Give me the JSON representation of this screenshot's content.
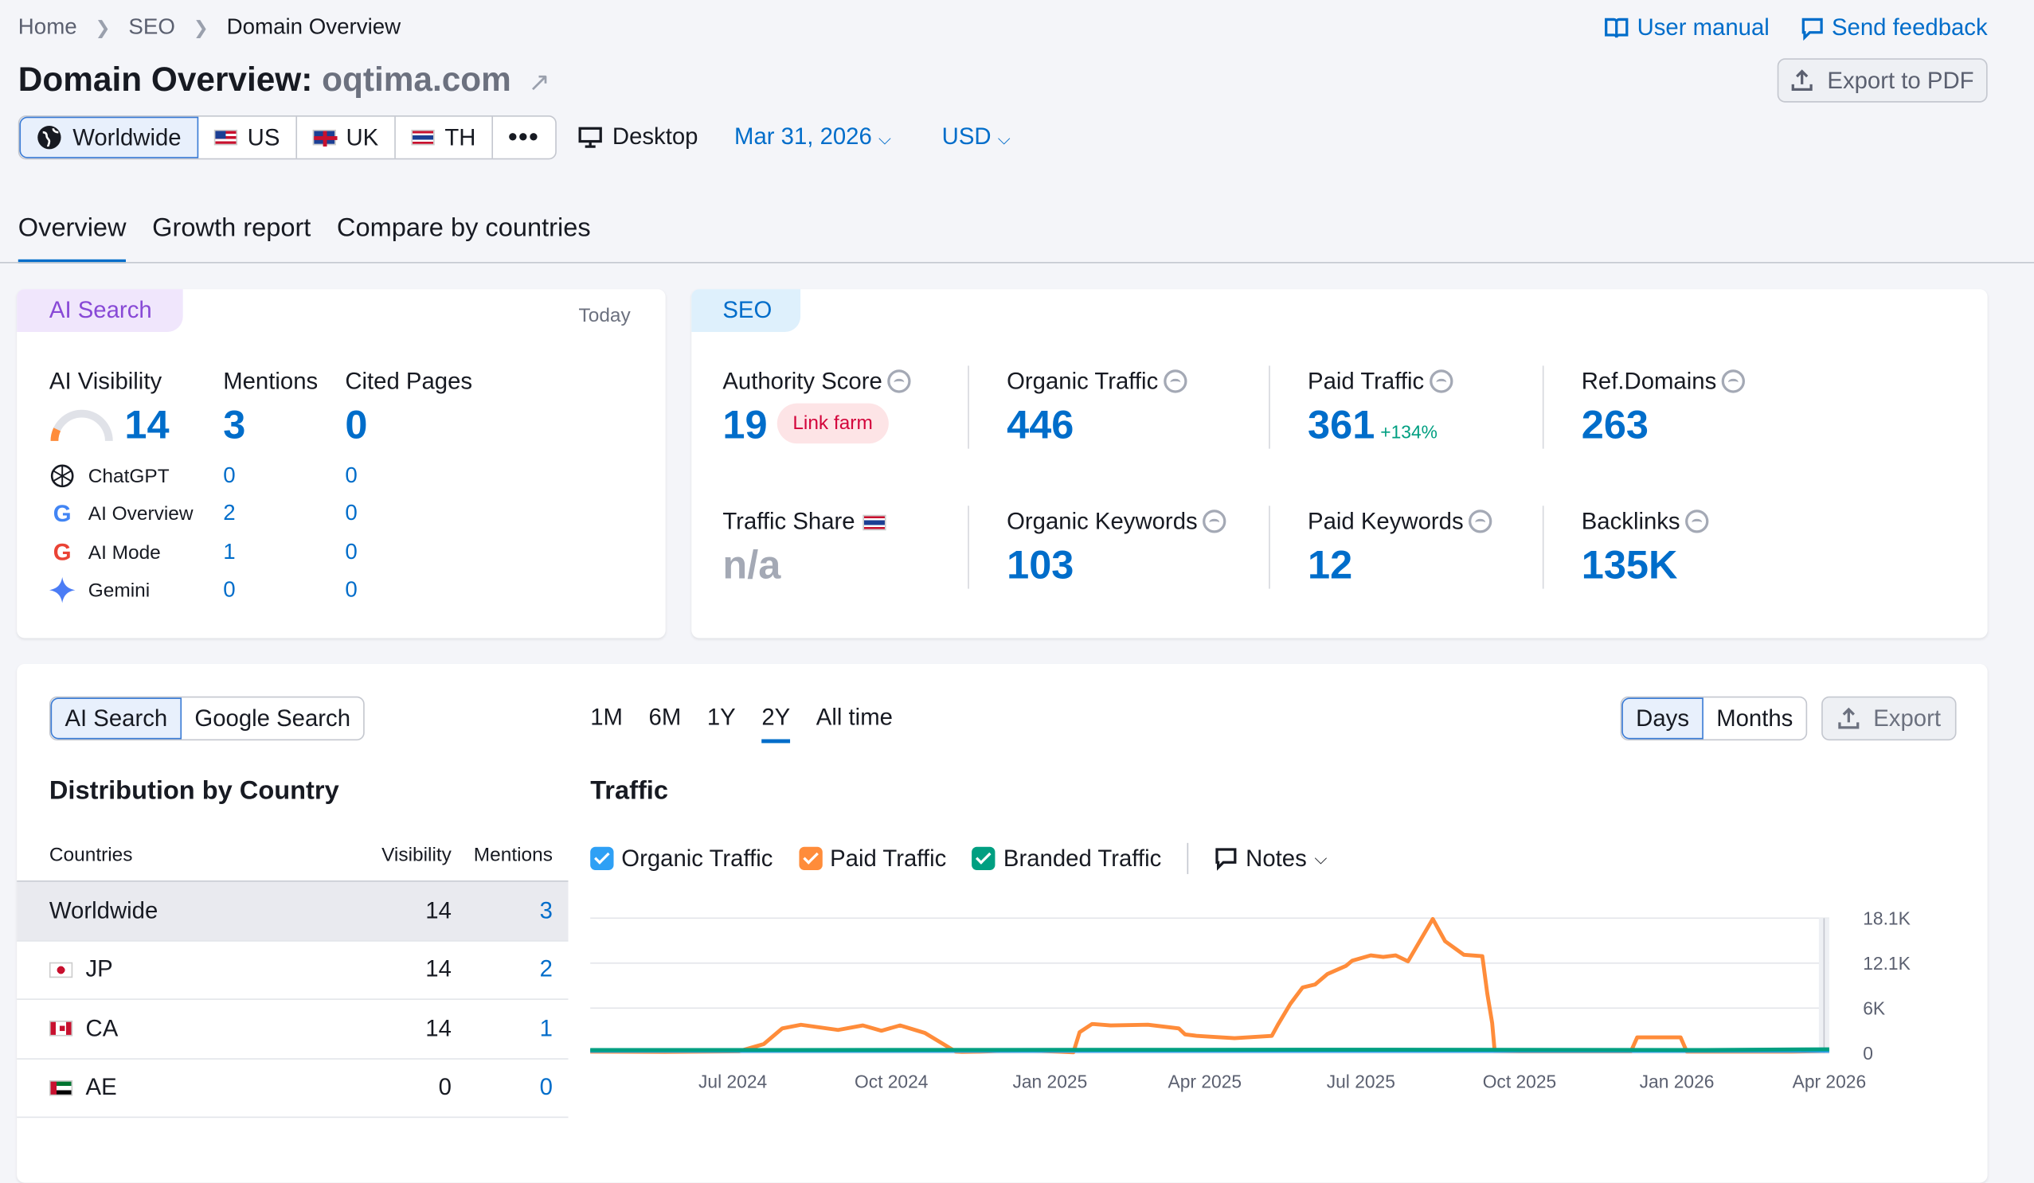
{
  "breadcrumb": [
    "Home",
    "SEO",
    "Domain Overview"
  ],
  "top_links": {
    "manual": "User manual",
    "feedback": "Send feedback"
  },
  "title": {
    "prefix": "Domain Overview:",
    "domain": "oqtima.com"
  },
  "export_pdf": "Export to PDF",
  "db_tabs": [
    {
      "label": "Worldwide",
      "icon": "globe-icon"
    },
    {
      "label": "US",
      "icon": "us-flag-icon"
    },
    {
      "label": "UK",
      "icon": "uk-flag-icon"
    },
    {
      "label": "TH",
      "icon": "th-flag-icon"
    }
  ],
  "device": "Desktop",
  "date": "Mar 31, 2026",
  "currency": "USD",
  "nav_tabs": [
    "Overview",
    "Growth report",
    "Compare by countries"
  ],
  "ai_card": {
    "pill": "AI Search",
    "today": "Today",
    "headers": {
      "visibility": "AI Visibility",
      "mentions": "Mentions",
      "cited": "Cited Pages"
    },
    "totals": {
      "visibility": "14",
      "mentions": "3",
      "cited": "0"
    },
    "visibility_gauge": 0.14,
    "rows": [
      {
        "name": "ChatGPT",
        "icon": "chatgpt-icon",
        "mentions": "0",
        "cited": "0"
      },
      {
        "name": "AI Overview",
        "icon": "google-icon",
        "mentions": "2",
        "cited": "0"
      },
      {
        "name": "AI Mode",
        "icon": "google-icon",
        "mentions": "1",
        "cited": "0"
      },
      {
        "name": "Gemini",
        "icon": "gemini-icon",
        "mentions": "0",
        "cited": "0"
      }
    ]
  },
  "seo_card": {
    "pill": "SEO",
    "authority": {
      "label": "Authority Score",
      "value": "19",
      "badge": "Link farm"
    },
    "organic_traffic": {
      "label": "Organic Traffic",
      "value": "446"
    },
    "paid_traffic": {
      "label": "Paid Traffic",
      "value": "361",
      "change": "+134%"
    },
    "ref_domains": {
      "label": "Ref.Domains",
      "value": "263"
    },
    "traffic_share": {
      "label": "Traffic Share",
      "value": "n/a"
    },
    "organic_keywords": {
      "label": "Organic Keywords",
      "value": "103"
    },
    "paid_keywords": {
      "label": "Paid Keywords",
      "value": "12"
    },
    "backlinks": {
      "label": "Backlinks",
      "value": "135K"
    }
  },
  "bottom": {
    "search_toggle": [
      "AI Search",
      "Google Search"
    ],
    "periods": [
      "1M",
      "6M",
      "1Y",
      "2Y",
      "All time"
    ],
    "granularity": [
      "Days",
      "Months"
    ],
    "export": "Export",
    "distribution_title": "Distribution by Country",
    "table_headers": {
      "country": "Countries",
      "visibility": "Visibility",
      "mentions": "Mentions"
    },
    "table_rows": [
      {
        "country": "Worldwide",
        "visibility": "14",
        "mentions": "3"
      },
      {
        "country": "JP",
        "visibility": "14",
        "mentions": "2"
      },
      {
        "country": "CA",
        "visibility": "14",
        "mentions": "1"
      },
      {
        "country": "AE",
        "visibility": "0",
        "mentions": "0"
      }
    ],
    "traffic_title": "Traffic",
    "legend": [
      {
        "label": "Organic Traffic",
        "color": "#2ea0f5"
      },
      {
        "label": "Paid Traffic",
        "color": "#ff8c3a"
      },
      {
        "label": "Branded Traffic",
        "color": "#009f81"
      }
    ],
    "notes": "Notes"
  },
  "chart_data": {
    "type": "line",
    "x_ticks": [
      "Jul 2024",
      "Oct 2024",
      "Jan 2025",
      "Apr 2025",
      "Jul 2025",
      "Oct 2025",
      "Jan 2026",
      "Apr 2026"
    ],
    "y_ticks": [
      "18.1K",
      "12.1K",
      "6K",
      "0"
    ],
    "ylim": [
      0,
      18100
    ],
    "series": [
      {
        "name": "Paid Traffic",
        "color": "#ff8c3a",
        "x": [
          0,
          0.06,
          0.12,
          0.14,
          0.155,
          0.17,
          0.2,
          0.22,
          0.235,
          0.25,
          0.26,
          0.27,
          0.295,
          0.3,
          0.315,
          0.33,
          0.355,
          0.39,
          0.395,
          0.405,
          0.42,
          0.45,
          0.475,
          0.48,
          0.49,
          0.5,
          0.52,
          0.55,
          0.555,
          0.565,
          0.575,
          0.585,
          0.595,
          0.61,
          0.615,
          0.63,
          0.64,
          0.65,
          0.66,
          0.68,
          0.69,
          0.705,
          0.72,
          0.724,
          0.728,
          0.73,
          0.75,
          0.8,
          0.84,
          0.845,
          0.88,
          0.885,
          0.92,
          0.97,
          1.0
        ],
        "values": [
          200,
          150,
          250,
          1200,
          3300,
          3800,
          3100,
          3700,
          3000,
          3700,
          3200,
          2700,
          200,
          150,
          200,
          300,
          350,
          100,
          2800,
          3900,
          3700,
          3800,
          3300,
          2500,
          2300,
          2200,
          2000,
          2300,
          3800,
          6600,
          8800,
          9200,
          10600,
          11700,
          12400,
          13100,
          12900,
          13100,
          12300,
          18000,
          15000,
          13200,
          13000,
          8000,
          4000,
          300,
          250,
          250,
          250,
          2100,
          2100,
          200,
          200,
          200,
          300
        ]
      },
      {
        "name": "Organic Traffic",
        "color": "#2ea0f5",
        "x": [
          0,
          0.5,
          1.0
        ],
        "values": [
          300,
          300,
          300
        ]
      },
      {
        "name": "Branded Traffic",
        "color": "#009f81",
        "x": [
          0,
          0.3,
          0.6,
          0.9,
          1.0
        ],
        "values": [
          400,
          420,
          450,
          400,
          500
        ]
      }
    ]
  }
}
